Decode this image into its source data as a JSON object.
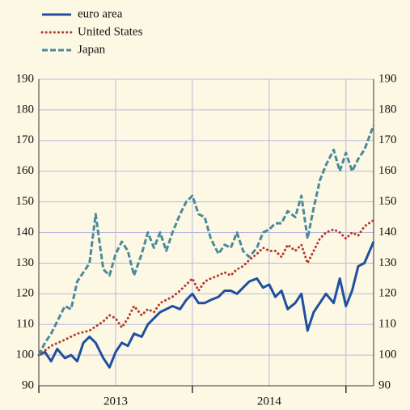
{
  "chart_data": {
    "type": "line",
    "series": [
      {
        "name": "euro area",
        "color": "#1f4fa0",
        "style": "solid",
        "x": [
          2013.0,
          2013.04,
          2013.08,
          2013.12,
          2013.17,
          2013.21,
          2013.25,
          2013.29,
          2013.33,
          2013.37,
          2013.42,
          2013.46,
          2013.5,
          2013.54,
          2013.58,
          2013.62,
          2013.67,
          2013.71,
          2013.75,
          2013.79,
          2013.83,
          2013.87,
          2013.92,
          2013.96,
          2014.0,
          2014.04,
          2014.08,
          2014.12,
          2014.17,
          2014.21,
          2014.25,
          2014.29,
          2014.33,
          2014.37,
          2014.42,
          2014.46,
          2014.5,
          2014.54,
          2014.58,
          2014.62,
          2014.67,
          2014.71,
          2014.75,
          2014.79,
          2014.83,
          2014.87,
          2014.92,
          2014.96,
          2015.0,
          2015.04,
          2015.08,
          2015.12,
          2015.18
        ],
        "values": [
          100,
          101,
          98,
          102,
          99,
          100,
          98,
          104,
          106,
          104,
          99,
          96,
          101,
          104,
          103,
          107,
          106,
          110,
          112,
          114,
          115,
          116,
          115,
          118,
          120,
          117,
          117,
          118,
          119,
          121,
          121,
          120,
          122,
          124,
          125,
          122,
          123,
          119,
          121,
          115,
          117,
          120,
          108,
          114,
          117,
          120,
          117,
          125,
          116,
          121,
          129,
          130,
          137
        ]
      },
      {
        "name": "United States",
        "color": "#b5382b",
        "style": "dotted",
        "x": [
          2013.0,
          2013.08,
          2013.17,
          2013.25,
          2013.33,
          2013.42,
          2013.46,
          2013.5,
          2013.54,
          2013.58,
          2013.62,
          2013.67,
          2013.71,
          2013.75,
          2013.79,
          2013.83,
          2013.87,
          2013.92,
          2013.96,
          2014.0,
          2014.04,
          2014.08,
          2014.12,
          2014.17,
          2014.21,
          2014.25,
          2014.29,
          2014.33,
          2014.37,
          2014.42,
          2014.46,
          2014.5,
          2014.54,
          2014.58,
          2014.62,
          2014.67,
          2014.71,
          2014.75,
          2014.79,
          2014.83,
          2014.87,
          2014.92,
          2014.96,
          2015.0,
          2015.04,
          2015.08,
          2015.12,
          2015.18
        ],
        "values": [
          100,
          103,
          105,
          107,
          108,
          111,
          113,
          112,
          109,
          112,
          116,
          113,
          115,
          114,
          117,
          118,
          119,
          121,
          123,
          125,
          121,
          124,
          125,
          126,
          127,
          126,
          128,
          129,
          131,
          133,
          135,
          134,
          134,
          132,
          136,
          134,
          136,
          130,
          134,
          138,
          140,
          141,
          140,
          138,
          140,
          139,
          142,
          144
        ]
      },
      {
        "name": "Japan",
        "color": "#4a8a9a",
        "style": "dashed",
        "x": [
          2013.0,
          2013.04,
          2013.08,
          2013.12,
          2013.17,
          2013.21,
          2013.25,
          2013.29,
          2013.33,
          2013.37,
          2013.4,
          2013.42,
          2013.46,
          2013.5,
          2013.54,
          2013.58,
          2013.62,
          2013.67,
          2013.71,
          2013.75,
          2013.79,
          2013.83,
          2013.87,
          2013.92,
          2013.96,
          2014.0,
          2014.04,
          2014.08,
          2014.12,
          2014.17,
          2014.21,
          2014.25,
          2014.29,
          2014.33,
          2014.37,
          2014.42,
          2014.46,
          2014.5,
          2014.54,
          2014.58,
          2014.62,
          2014.67,
          2014.71,
          2014.75,
          2014.79,
          2014.83,
          2014.87,
          2014.92,
          2014.96,
          2015.0,
          2015.04,
          2015.08,
          2015.12,
          2015.18
        ],
        "values": [
          100,
          104,
          107,
          111,
          116,
          115,
          124,
          127,
          130,
          146,
          135,
          128,
          126,
          133,
          137,
          134,
          126,
          133,
          140,
          135,
          140,
          134,
          140,
          146,
          150,
          152,
          146,
          145,
          138,
          133,
          136,
          135,
          140,
          134,
          132,
          135,
          140,
          141,
          143,
          143,
          147,
          145,
          152,
          138,
          148,
          157,
          162,
          167,
          160,
          166,
          160,
          164,
          167,
          175
        ]
      }
    ],
    "xlim": [
      2013.0,
      2015.18
    ],
    "xticks": [
      {
        "value": 2013.5,
        "label": "2013"
      },
      {
        "value": 2014.5,
        "label": "2014"
      }
    ],
    "xgrid": [
      2013.5,
      2014.0,
      2014.5,
      2015.0
    ],
    "xtickmarks": [
      2013.0,
      2014.0,
      2015.0
    ],
    "ylim": [
      90,
      190
    ],
    "yticks": [
      90,
      100,
      110,
      120,
      130,
      140,
      150,
      160,
      170,
      180,
      190
    ],
    "grid": true
  }
}
